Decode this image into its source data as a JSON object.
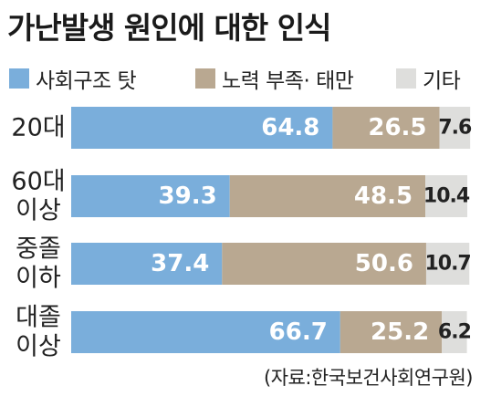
{
  "title": "가난발생 원인에 대한 인식",
  "source": "(자료:한국보건사회연구원)",
  "colors": {
    "social_structure": "#7aaedb",
    "effort_lack": "#b9a891",
    "other": "#dededc",
    "text": "#222222"
  },
  "chart_data": {
    "type": "bar",
    "orientation": "horizontal",
    "stacked": true,
    "title": "가난발생 원인에 대한 인식",
    "categories": [
      "20대",
      "60대\n이상",
      "중졸\n이하",
      "대졸\n이상"
    ],
    "series": [
      {
        "name": "사회구조 탓",
        "values": [
          64.8,
          39.3,
          37.4,
          66.7
        ]
      },
      {
        "name": "노력 부족· 태만",
        "values": [
          26.5,
          48.5,
          50.6,
          25.2
        ]
      },
      {
        "name": "기타",
        "values": [
          7.6,
          10.4,
          10.7,
          6.2
        ]
      }
    ],
    "xlim": [
      0,
      100
    ],
    "legend": "top",
    "grid": false
  }
}
